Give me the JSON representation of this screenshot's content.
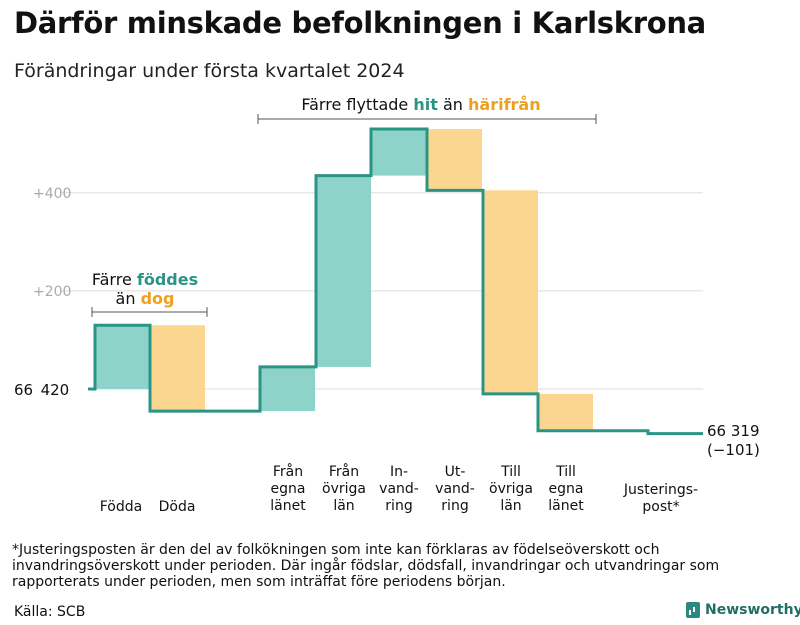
{
  "header": {
    "title": "Därför minskade befolkningen i Karlskrona",
    "subtitle": "Förändringar under första kvartalet 2024"
  },
  "chart_data": {
    "type": "waterfall",
    "start": {
      "label": "66 420",
      "value": 66420
    },
    "end": {
      "label": "66 319",
      "change_label": "(−101)",
      "value": 66319
    },
    "yticks": [
      {
        "value": 200,
        "label": "+200"
      },
      {
        "value": 400,
        "label": "+400"
      }
    ],
    "ylim": [
      -60,
      540
    ],
    "steps": [
      {
        "label": [
          "Födda"
        ],
        "delta": 130,
        "kind": "in"
      },
      {
        "label": [
          "Döda"
        ],
        "delta": -175,
        "kind": "out"
      },
      {
        "label": [
          "Från",
          "egna",
          "länet"
        ],
        "delta": 90,
        "kind": "in"
      },
      {
        "label": [
          "Från",
          "övriga",
          "län"
        ],
        "delta": 390,
        "kind": "in"
      },
      {
        "label": [
          "In-",
          "vand-",
          "ring"
        ],
        "delta": 95,
        "kind": "in"
      },
      {
        "label": [
          "Ut-",
          "vand-",
          "ring"
        ],
        "delta": -125,
        "kind": "out"
      },
      {
        "label": [
          "Till",
          "övriga",
          "län"
        ],
        "delta": -415,
        "kind": "out"
      },
      {
        "label": [
          "Till",
          "egna",
          "länet"
        ],
        "delta": -75,
        "kind": "out"
      },
      {
        "label": [
          "Justerings-",
          "post*"
        ],
        "delta": -6,
        "kind": "adj"
      }
    ],
    "annotations": [
      {
        "id": "births",
        "line1": [
          {
            "text": "Färre "
          },
          {
            "text": "föddes",
            "color": "teal"
          }
        ],
        "line2": [
          {
            "text": "än "
          },
          {
            "text": "dog",
            "color": "orange"
          }
        ]
      },
      {
        "id": "moves",
        "line1": [
          {
            "text": "Färre flyttade "
          },
          {
            "text": "hit",
            "color": "teal"
          },
          {
            "text": " än "
          },
          {
            "text": "härifrån",
            "color": "orange"
          }
        ]
      }
    ],
    "colors": {
      "in": "#8dd3c9",
      "out": "#fbd690",
      "line": "#2b9585",
      "teal_text": "#2b9585",
      "orange_text": "#f0a020",
      "grid": "#dddddd"
    }
  },
  "footnote": "*Justeringsposten är den del av folkökningen som inte kan förklaras av födelseöverskott och invandringsöverskott under perioden. Där ingår födslar, dödsfall, invandringar och utvandringar som rapporterats under perioden, men som inträffat före periodens början.",
  "source": "Källa: SCB",
  "brand": {
    "name": "Newsworthy",
    "icon": "bar-chart-icon"
  }
}
